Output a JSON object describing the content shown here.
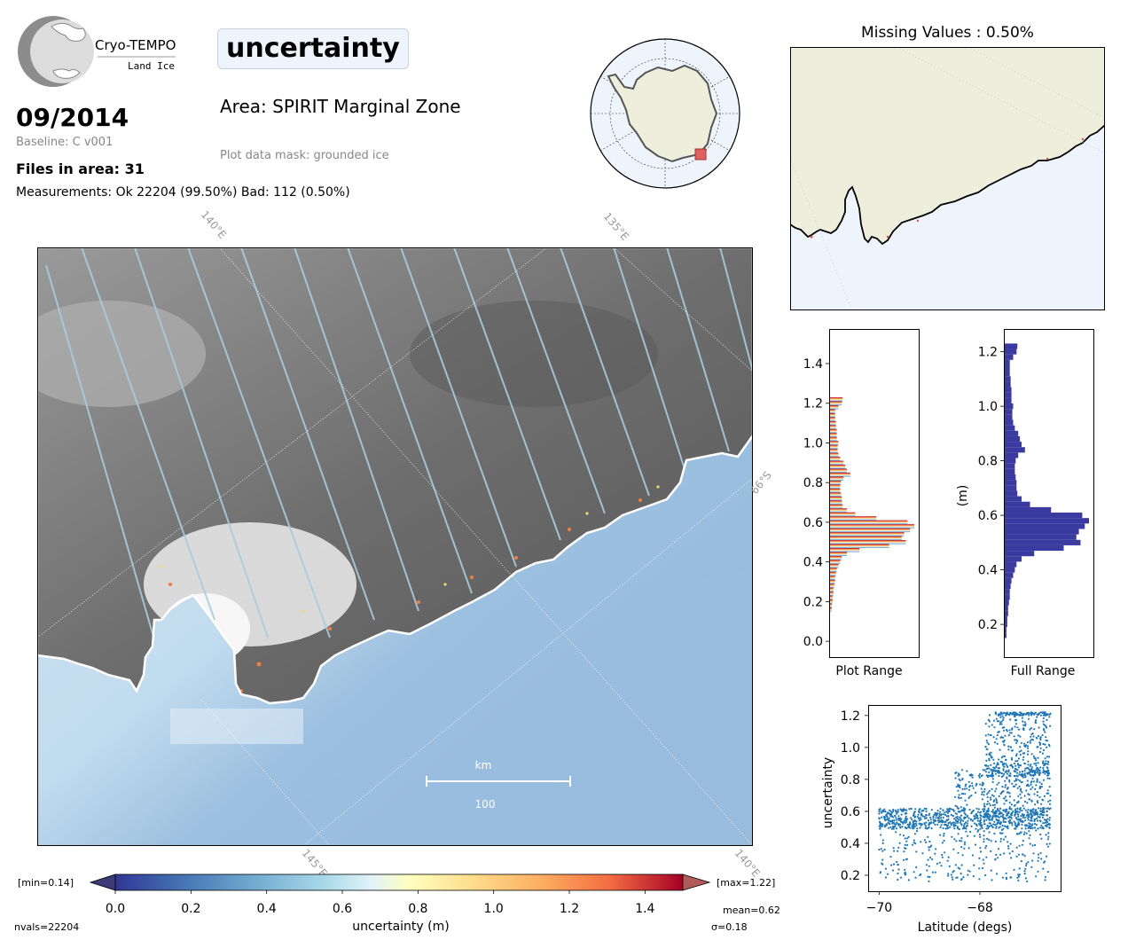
{
  "logo": {
    "name": "Cryo-TEMPO",
    "sub": "Land Ice"
  },
  "header": {
    "title": "uncertainty",
    "date": "09/2014",
    "baseline": "Baseline: C v001",
    "files": "Files in area: 31",
    "measurements": "Measurements: Ok 22204 (99.50%) Bad: 112 (0.50%)",
    "area": "Area: SPIRIT Marginal Zone",
    "mask": "Plot data mask: grounded ice"
  },
  "missing_values": "Missing Values : 0.50%",
  "map": {
    "grid_labels": {
      "lon_140_top": "140°E",
      "lon_135_top": "135°E",
      "lat_66": "66°S",
      "lon_145_bottom": "145°E",
      "lon_140_bottom": "140°E"
    },
    "scalebar": {
      "unit": "km",
      "value": "100"
    }
  },
  "colorbar": {
    "label": "uncertainty (m)",
    "ticks": [
      "0.0",
      "0.2",
      "0.4",
      "0.6",
      "0.8",
      "1.0",
      "1.2",
      "1.4"
    ],
    "min_label": "[min=0.14]",
    "max_label": "[max=1.22]",
    "mean": "mean=0.62",
    "sigma": "σ=0.18",
    "nvals": "nvals=22204"
  },
  "colors": {
    "ice": "#eeeedc",
    "ocean": "#eef4fc",
    "hist_full": "#3a3aa0",
    "scatter": "#1f77b4",
    "highlight": "#e05050"
  },
  "chart_data": [
    {
      "type": "bar",
      "orientation": "horizontal",
      "xlabel": "Plot Range",
      "ylabel": "",
      "ylim": [
        -0.08,
        1.57
      ],
      "yticks": [
        "0.0",
        "0.2",
        "0.4",
        "0.6",
        "0.8",
        "1.0",
        "1.2",
        "1.4"
      ],
      "bins": [
        0.16,
        0.18,
        0.2,
        0.22,
        0.24,
        0.26,
        0.28,
        0.3,
        0.32,
        0.34,
        0.36,
        0.38,
        0.4,
        0.42,
        0.44,
        0.46,
        0.48,
        0.5,
        0.52,
        0.54,
        0.56,
        0.58,
        0.6,
        0.62,
        0.64,
        0.66,
        0.68,
        0.7,
        0.72,
        0.74,
        0.76,
        0.78,
        0.8,
        0.82,
        0.84,
        0.86,
        0.88,
        0.9,
        0.92,
        0.94,
        0.96,
        0.98,
        1.0,
        1.02,
        1.04,
        1.06,
        1.08,
        1.1,
        1.12,
        1.14,
        1.16,
        1.18,
        1.2,
        1.22
      ],
      "values": [
        0.02,
        0.02,
        0.03,
        0.03,
        0.04,
        0.04,
        0.05,
        0.06,
        0.06,
        0.07,
        0.08,
        0.1,
        0.12,
        0.14,
        0.2,
        0.35,
        0.7,
        0.9,
        0.85,
        0.88,
        0.95,
        1.0,
        0.92,
        0.55,
        0.3,
        0.2,
        0.15,
        0.14,
        0.14,
        0.13,
        0.12,
        0.12,
        0.13,
        0.16,
        0.24,
        0.2,
        0.18,
        0.16,
        0.12,
        0.1,
        0.09,
        0.09,
        0.1,
        0.08,
        0.08,
        0.08,
        0.07,
        0.07,
        0.06,
        0.06,
        0.06,
        0.1,
        0.14,
        0.15
      ]
    },
    {
      "type": "bar",
      "orientation": "horizontal",
      "xlabel": "Full Range",
      "ylabel": "(m)",
      "ylim": [
        0.08,
        1.28
      ],
      "yticks": [
        "0.2",
        "0.4",
        "0.6",
        "0.8",
        "1.0",
        "1.2"
      ],
      "bins": [
        0.16,
        0.18,
        0.2,
        0.22,
        0.24,
        0.26,
        0.28,
        0.3,
        0.32,
        0.34,
        0.36,
        0.38,
        0.4,
        0.42,
        0.44,
        0.46,
        0.48,
        0.5,
        0.52,
        0.54,
        0.56,
        0.58,
        0.6,
        0.62,
        0.64,
        0.66,
        0.68,
        0.7,
        0.72,
        0.74,
        0.76,
        0.78,
        0.8,
        0.82,
        0.84,
        0.86,
        0.88,
        0.9,
        0.92,
        0.94,
        0.96,
        0.98,
        1.0,
        1.02,
        1.04,
        1.06,
        1.08,
        1.1,
        1.12,
        1.14,
        1.16,
        1.18,
        1.2,
        1.22
      ],
      "values": [
        0.02,
        0.02,
        0.03,
        0.03,
        0.04,
        0.04,
        0.05,
        0.06,
        0.06,
        0.07,
        0.08,
        0.1,
        0.12,
        0.14,
        0.2,
        0.35,
        0.7,
        0.9,
        0.85,
        0.88,
        0.95,
        1.0,
        0.92,
        0.55,
        0.3,
        0.2,
        0.15,
        0.14,
        0.14,
        0.13,
        0.12,
        0.12,
        0.13,
        0.16,
        0.24,
        0.2,
        0.18,
        0.16,
        0.12,
        0.1,
        0.09,
        0.09,
        0.1,
        0.08,
        0.08,
        0.08,
        0.07,
        0.07,
        0.06,
        0.06,
        0.06,
        0.1,
        0.14,
        0.15
      ]
    },
    {
      "type": "scatter",
      "xlabel": "Latitude (degs)",
      "ylabel": "uncertainty",
      "xlim": [
        -70.2,
        -66.4
      ],
      "ylim": [
        0.1,
        1.26
      ],
      "xticks": [
        "−70",
        "−68"
      ],
      "yticks": [
        "0.2",
        "0.4",
        "0.6",
        "0.8",
        "1.0",
        "1.2"
      ],
      "n_points": 22204,
      "clusters": [
        {
          "lat": [
            -70.0,
            -66.6
          ],
          "unc": [
            0.49,
            0.62
          ],
          "weight": 0.45
        },
        {
          "lat": [
            -70.0,
            -66.6
          ],
          "unc": [
            0.16,
            0.49
          ],
          "weight": 0.15
        },
        {
          "lat": [
            -68.5,
            -66.6
          ],
          "unc": [
            0.62,
            0.86
          ],
          "weight": 0.14
        },
        {
          "lat": [
            -67.9,
            -66.6
          ],
          "unc": [
            0.82,
            0.9
          ],
          "weight": 0.09
        },
        {
          "lat": [
            -67.9,
            -66.6
          ],
          "unc": [
            0.9,
            1.21
          ],
          "weight": 0.12
        },
        {
          "lat": [
            -67.7,
            -66.6
          ],
          "unc": [
            1.2,
            1.22
          ],
          "weight": 0.05
        }
      ]
    }
  ]
}
